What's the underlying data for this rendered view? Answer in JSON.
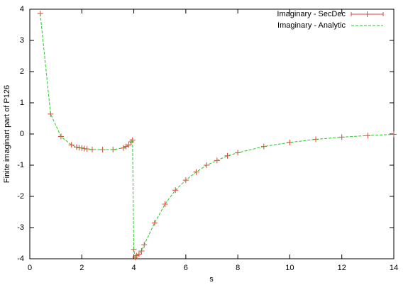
{
  "chart_data": {
    "type": "line",
    "xlabel": "s",
    "ylabel": "Finite imaginart part of P126",
    "x": [
      0.4,
      0.8,
      1.2,
      1.6,
      1.8,
      1.9,
      2.0,
      2.1,
      2.2,
      2.4,
      2.8,
      3.2,
      3.6,
      3.7,
      3.8,
      3.9,
      3.95,
      4.0,
      4.05,
      4.1,
      4.2,
      4.3,
      4.4,
      4.8,
      5.2,
      5.6,
      6.0,
      6.4,
      6.8,
      7.2,
      7.6,
      8.0,
      9.0,
      10.0,
      11.0,
      12.0,
      13.0,
      14.0
    ],
    "series": [
      {
        "name": "Imaginary - SecDec",
        "color": "#e04040",
        "style": "points",
        "values": [
          3.86,
          0.64,
          -0.08,
          -0.35,
          -0.42,
          -0.44,
          -0.45,
          -0.47,
          -0.48,
          -0.5,
          -0.5,
          -0.5,
          -0.45,
          -0.4,
          -0.35,
          -0.25,
          -0.2,
          -3.7,
          -3.95,
          -3.9,
          -3.85,
          -3.75,
          -3.55,
          -2.85,
          -2.25,
          -1.8,
          -1.48,
          -1.22,
          -1.0,
          -0.85,
          -0.7,
          -0.6,
          -0.4,
          -0.27,
          -0.17,
          -0.1,
          -0.05,
          -0.01
        ]
      },
      {
        "name": "Imaginary - Analytic",
        "color": "#22cc22",
        "style": "dashed",
        "values": [
          3.86,
          0.64,
          -0.08,
          -0.35,
          -0.42,
          -0.44,
          -0.45,
          -0.47,
          -0.48,
          -0.5,
          -0.5,
          -0.5,
          -0.45,
          -0.4,
          -0.35,
          -0.25,
          -0.2,
          -3.7,
          -3.95,
          -3.9,
          -3.85,
          -3.75,
          -3.55,
          -2.85,
          -2.25,
          -1.8,
          -1.48,
          -1.22,
          -1.0,
          -0.85,
          -0.7,
          -0.6,
          -0.4,
          -0.27,
          -0.17,
          -0.1,
          -0.05,
          -0.01
        ]
      }
    ],
    "xlim": [
      0,
      14
    ],
    "xticks": [
      0,
      2,
      4,
      6,
      8,
      10,
      12,
      14
    ],
    "ylim": [
      -4,
      4
    ],
    "yticks": [
      -4,
      -3,
      -2,
      -1,
      0,
      1,
      2,
      3,
      4
    ],
    "legend": "top-right"
  }
}
